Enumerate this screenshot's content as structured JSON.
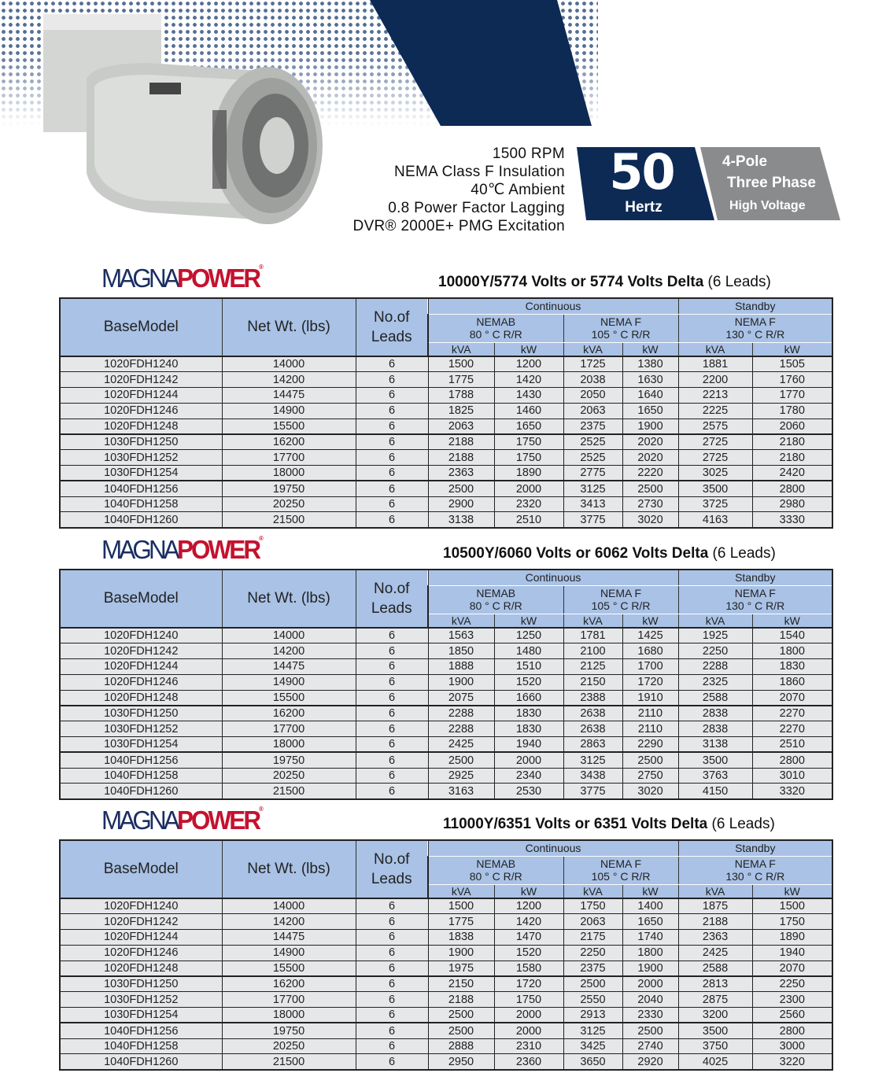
{
  "header": {
    "specs": [
      "1500 RPM",
      "NEMA Class F Insulation",
      "40℃ Ambient",
      "0.8 Power Factor Lagging",
      "DVR® 2000E+ PMG Excitation"
    ],
    "frequency": "50",
    "frequency_unit": "Hertz",
    "poles": "4-Pole",
    "phase": "Three Phase",
    "voltage_class": "High Voltage"
  },
  "colors": {
    "navy": "#0d2a55",
    "grey_badge": "#8a8b8d",
    "header_blue": "#a9c2e6",
    "row_grey": "#e6e7e9",
    "brand_red": "#c4122f",
    "brand_blue": "#1b2e63"
  },
  "logo": {
    "part1": "MAGNA",
    "part2": "POWER",
    "mark": "®"
  },
  "columns": {
    "base_model": "BaseModel",
    "net_wt": "Net Wt. (lbs)",
    "leads_1": "No.of",
    "leads_2": "Leads",
    "continuous": "Continuous",
    "standby": "Standby",
    "nema_b": "NEMAB",
    "nema_b_temp": "80 ° C R/R",
    "nema_f": "NEMA F",
    "nema_f_temp_cont": "105 ° C R/R",
    "nema_f_standby": "NEMA F",
    "nema_f_temp_standby": "130 ° C R/R",
    "kva": "kVA",
    "kw": "kW"
  },
  "models": [
    "1020FDH1240",
    "1020FDH1242",
    "1020FDH1244",
    "1020FDH1246",
    "1020FDH1248",
    "1030FDH1250",
    "1030FDH1252",
    "1030FDH1254",
    "1040FDH1256",
    "1040FDH1258",
    "1040FDH1260"
  ],
  "weights": [
    "14000",
    "14200",
    "14475",
    "14900",
    "15500",
    "16200",
    "17700",
    "18000",
    "19750",
    "20250",
    "21500"
  ],
  "leads": "6",
  "tables": [
    {
      "title_bold": "10000Y/5774 Volts or 5774 Volts Delta",
      "title_rest": " (6 Leads)",
      "rows": [
        [
          "1500",
          "1200",
          "1725",
          "1380",
          "1881",
          "1505"
        ],
        [
          "1775",
          "1420",
          "2038",
          "1630",
          "2200",
          "1760"
        ],
        [
          "1788",
          "1430",
          "2050",
          "1640",
          "2213",
          "1770"
        ],
        [
          "1825",
          "1460",
          "2063",
          "1650",
          "2225",
          "1780"
        ],
        [
          "2063",
          "1650",
          "2375",
          "1900",
          "2575",
          "2060"
        ],
        [
          "2188",
          "1750",
          "2525",
          "2020",
          "2725",
          "2180"
        ],
        [
          "2188",
          "1750",
          "2525",
          "2020",
          "2725",
          "2180"
        ],
        [
          "2363",
          "1890",
          "2775",
          "2220",
          "3025",
          "2420"
        ],
        [
          "2500",
          "2000",
          "3125",
          "2500",
          "3500",
          "2800"
        ],
        [
          "2900",
          "2320",
          "3413",
          "2730",
          "3725",
          "2980"
        ],
        [
          "3138",
          "2510",
          "3775",
          "3020",
          "4163",
          "3330"
        ]
      ]
    },
    {
      "title_bold": "10500Y/6060  Volts or 6062 Volts Delta",
      "title_rest": " (6 Leads)",
      "rows": [
        [
          "1563",
          "1250",
          "1781",
          "1425",
          "1925",
          "1540"
        ],
        [
          "1850",
          "1480",
          "2100",
          "1680",
          "2250",
          "1800"
        ],
        [
          "1888",
          "1510",
          "2125",
          "1700",
          "2288",
          "1830"
        ],
        [
          "1900",
          "1520",
          "2150",
          "1720",
          "2325",
          "1860"
        ],
        [
          "2075",
          "1660",
          "2388",
          "1910",
          "2588",
          "2070"
        ],
        [
          "2288",
          "1830",
          "2638",
          "2110",
          "2838",
          "2270"
        ],
        [
          "2288",
          "1830",
          "2638",
          "2110",
          "2838",
          "2270"
        ],
        [
          "2425",
          "1940",
          "2863",
          "2290",
          "3138",
          "2510"
        ],
        [
          "2500",
          "2000",
          "3125",
          "2500",
          "3500",
          "2800"
        ],
        [
          "2925",
          "2340",
          "3438",
          "2750",
          "3763",
          "3010"
        ],
        [
          "3163",
          "2530",
          "3775",
          "3020",
          "4150",
          "3320"
        ]
      ]
    },
    {
      "title_bold": "11000Y/6351  Volts or 6351 Volts Delta",
      "title_rest": " (6 Leads)",
      "rows": [
        [
          "1500",
          "1200",
          "1750",
          "1400",
          "1875",
          "1500"
        ],
        [
          "1775",
          "1420",
          "2063",
          "1650",
          "2188",
          "1750"
        ],
        [
          "1838",
          "1470",
          "2175",
          "1740",
          "2363",
          "1890"
        ],
        [
          "1900",
          "1520",
          "2250",
          "1800",
          "2425",
          "1940"
        ],
        [
          "1975",
          "1580",
          "2375",
          "1900",
          "2588",
          "2070"
        ],
        [
          "2150",
          "1720",
          "2500",
          "2000",
          "2813",
          "2250"
        ],
        [
          "2188",
          "1750",
          "2550",
          "2040",
          "2875",
          "2300"
        ],
        [
          "2500",
          "2000",
          "2913",
          "2330",
          "3200",
          "2560"
        ],
        [
          "2500",
          "2000",
          "3125",
          "2500",
          "3500",
          "2800"
        ],
        [
          "2888",
          "2310",
          "3425",
          "2740",
          "3750",
          "3000"
        ],
        [
          "2950",
          "2360",
          "3650",
          "2920",
          "4025",
          "3220"
        ]
      ]
    }
  ]
}
